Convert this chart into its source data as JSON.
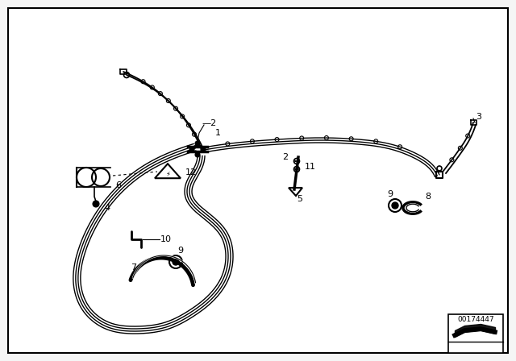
{
  "bg_color": "#f5f5f5",
  "border_color": "#000000",
  "part_id": "00174447",
  "white": "#ffffff",
  "black": "#000000"
}
